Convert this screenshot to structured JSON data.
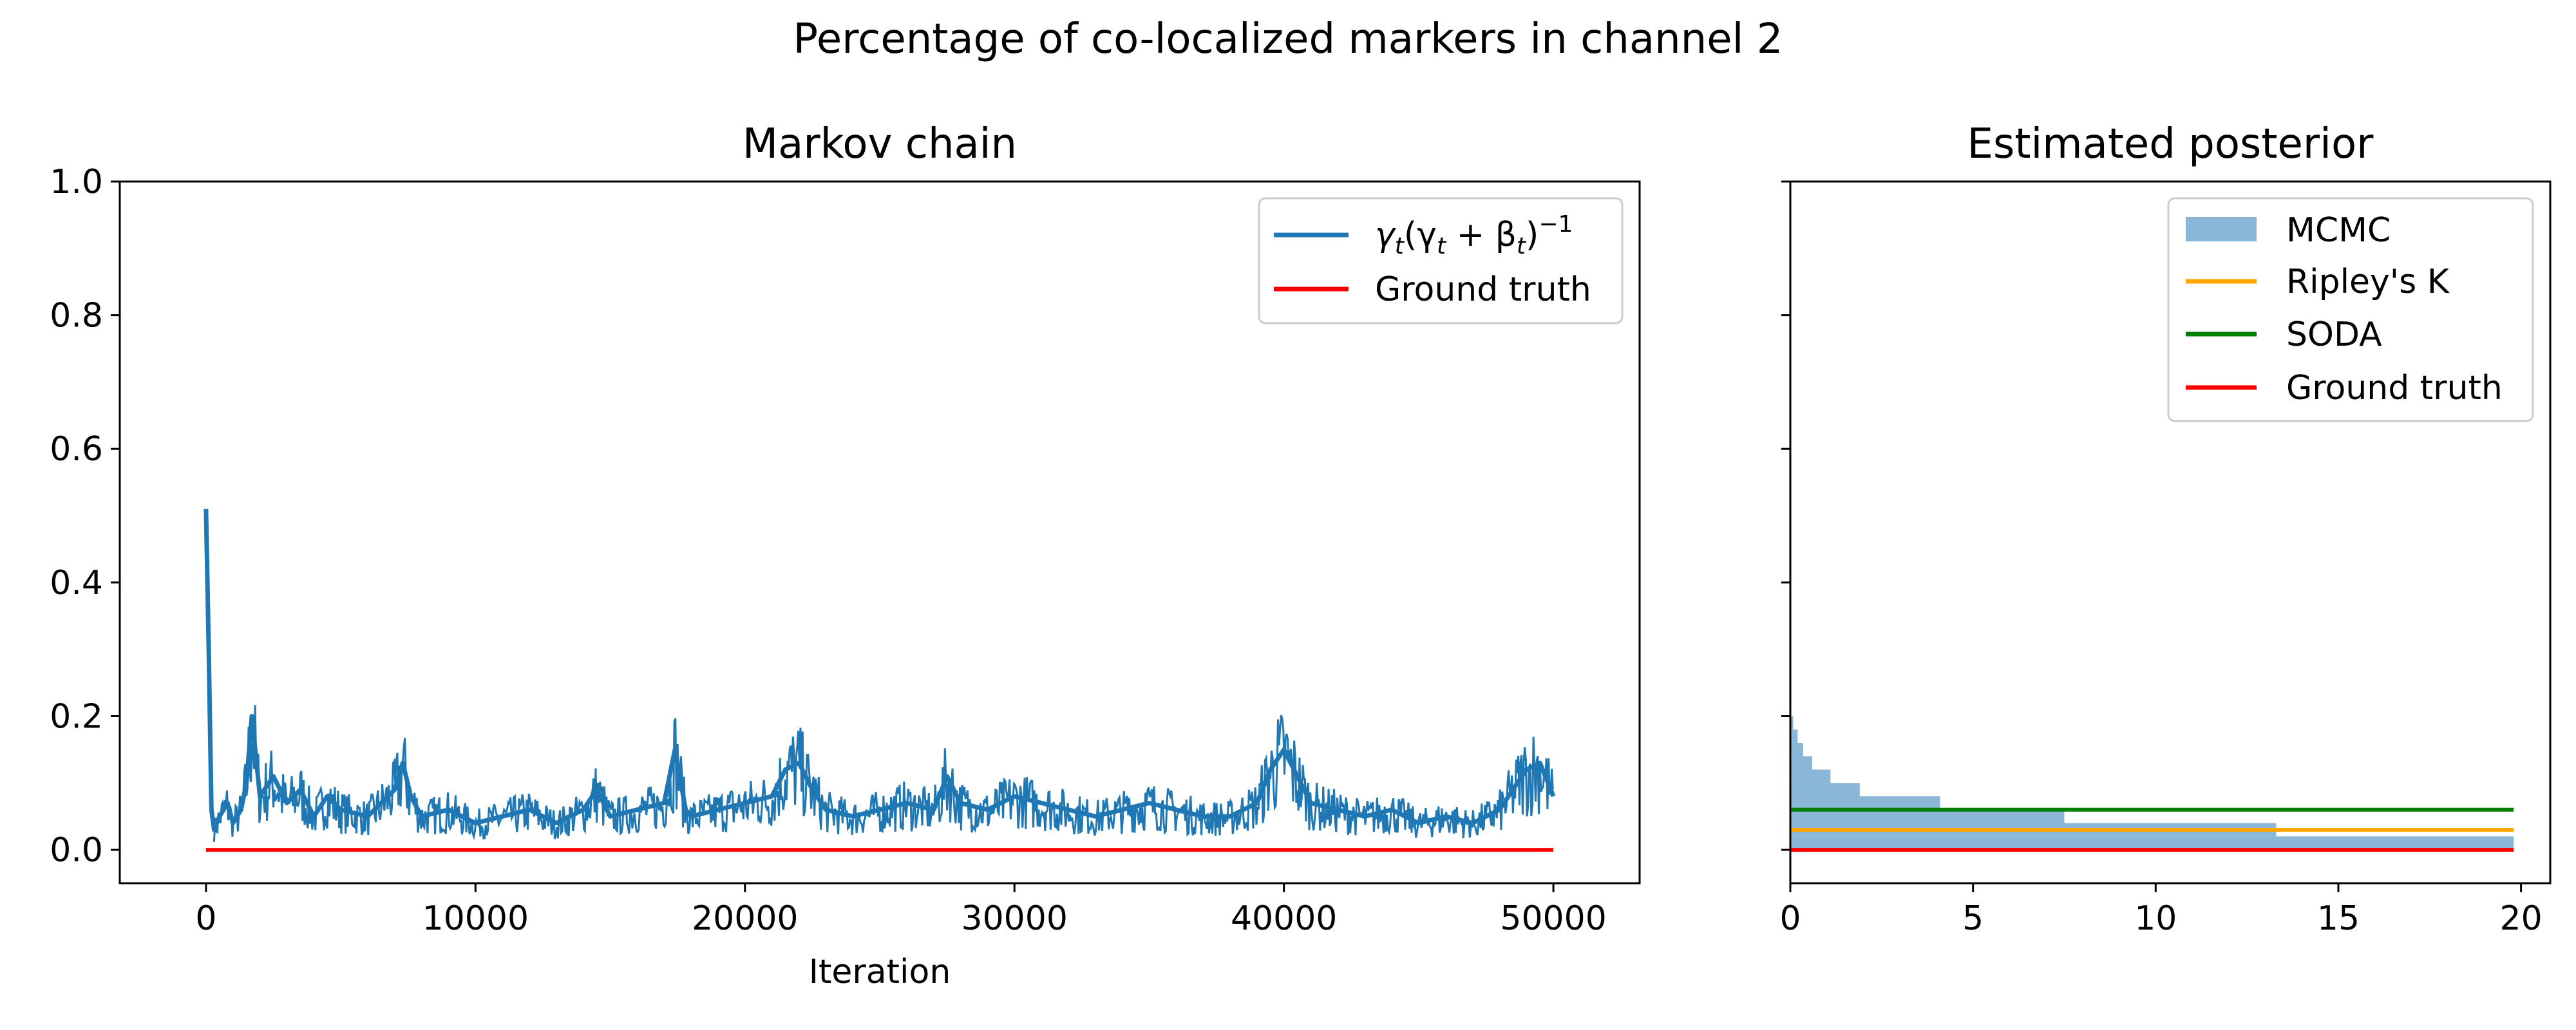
{
  "figure_title": "Percentage of co-localized markers in channel 2",
  "colors": {
    "chain": "#1f77b4",
    "mcmc": "#8ab6d8",
    "ripley": "#ffa500",
    "soda": "#008000",
    "ground_truth": "#ff0000"
  },
  "chart_data": [
    {
      "type": "line",
      "title": "Markov chain",
      "xlabel": "Iteration",
      "ylabel": "",
      "xlim": [
        -3200,
        53200
      ],
      "ylim": [
        -0.05,
        1.0
      ],
      "xticks": [
        0,
        10000,
        20000,
        30000,
        40000,
        50000
      ],
      "xtick_labels": [
        "0",
        "10000",
        "20000",
        "30000",
        "40000",
        "50000"
      ],
      "yticks": [
        0.0,
        0.2,
        0.4,
        0.6,
        0.8,
        1.0
      ],
      "ytick_labels": [
        "0.0",
        "0.2",
        "0.4",
        "0.6",
        "0.8",
        "1.0"
      ],
      "legend_position": "top-right",
      "series": [
        {
          "name": "γt(γt + βt)⁻¹",
          "legend_label": {
            "a": "γ",
            "a_sub": "t",
            "b": "(γ",
            "b_sub": "t",
            "c": " + β",
            "c_sub": "t",
            "d": ")",
            "d_sup": "−1"
          },
          "x": [
            0,
            100,
            200,
            300,
            500,
            800,
            1000,
            1300,
            1500,
            1700,
            2000,
            2500,
            3000,
            3500,
            4000,
            4500,
            5000,
            6000,
            7000,
            7300,
            7600,
            8000,
            9000,
            10000,
            11000,
            12000,
            13000,
            14000,
            14500,
            15000,
            16000,
            17000,
            17400,
            17800,
            18000,
            19000,
            20000,
            21000,
            21500,
            22000,
            22500,
            23000,
            24000,
            25000,
            26000,
            27000,
            27500,
            28000,
            29000,
            30000,
            31000,
            32000,
            33000,
            34000,
            35000,
            36000,
            37000,
            38000,
            39000,
            39500,
            40000,
            40500,
            41000,
            42000,
            43000,
            44000,
            45000,
            46000,
            47000,
            48000,
            48500,
            49000,
            49500,
            50000
          ],
          "values": [
            0.51,
            0.3,
            0.06,
            0.03,
            0.05,
            0.07,
            0.04,
            0.06,
            0.1,
            0.2,
            0.08,
            0.11,
            0.07,
            0.09,
            0.05,
            0.08,
            0.06,
            0.05,
            0.09,
            0.13,
            0.08,
            0.05,
            0.06,
            0.04,
            0.05,
            0.06,
            0.04,
            0.06,
            0.09,
            0.05,
            0.06,
            0.07,
            0.15,
            0.06,
            0.05,
            0.06,
            0.07,
            0.08,
            0.12,
            0.13,
            0.09,
            0.06,
            0.05,
            0.06,
            0.07,
            0.06,
            0.11,
            0.07,
            0.06,
            0.08,
            0.07,
            0.06,
            0.05,
            0.06,
            0.07,
            0.06,
            0.05,
            0.05,
            0.07,
            0.12,
            0.15,
            0.11,
            0.07,
            0.06,
            0.05,
            0.06,
            0.04,
            0.05,
            0.04,
            0.06,
            0.09,
            0.12,
            0.13,
            0.08
          ]
        },
        {
          "name": "Ground truth",
          "x": [
            0,
            50000
          ],
          "values": [
            0.0,
            0.0
          ]
        }
      ]
    },
    {
      "type": "bar",
      "orientation": "horizontal",
      "title": "Estimated posterior",
      "xlabel": "",
      "ylabel": "",
      "xlim": [
        0,
        20.8
      ],
      "ylim": [
        -0.05,
        1.0
      ],
      "xticks": [
        0,
        5,
        10,
        15,
        20
      ],
      "xtick_labels": [
        "0",
        "5",
        "10",
        "15",
        "20"
      ],
      "yticks": [
        0.0,
        0.2,
        0.4,
        0.6,
        0.8,
        1.0
      ],
      "ytick_labels": [
        "",
        "",
        "",
        "",
        "",
        ""
      ],
      "legend_position": "top-right",
      "series": [
        {
          "name": "MCMC",
          "bins": [
            {
              "y0": 0.0,
              "y1": 0.02,
              "value": 19.8
            },
            {
              "y0": 0.02,
              "y1": 0.04,
              "value": 13.3
            },
            {
              "y0": 0.04,
              "y1": 0.06,
              "value": 7.5
            },
            {
              "y0": 0.06,
              "y1": 0.08,
              "value": 4.1
            },
            {
              "y0": 0.08,
              "y1": 0.1,
              "value": 1.9
            },
            {
              "y0": 0.1,
              "y1": 0.12,
              "value": 1.1
            },
            {
              "y0": 0.12,
              "y1": 0.14,
              "value": 0.6
            },
            {
              "y0": 0.14,
              "y1": 0.16,
              "value": 0.35
            },
            {
              "y0": 0.16,
              "y1": 0.18,
              "value": 0.2
            },
            {
              "y0": 0.18,
              "y1": 0.2,
              "value": 0.08
            }
          ]
        },
        {
          "name": "Ripley's K",
          "y": 0.03,
          "x": [
            0,
            19.8
          ]
        },
        {
          "name": "SODA",
          "y": 0.06,
          "x": [
            0,
            19.8
          ]
        },
        {
          "name": "Ground truth",
          "y": 0.0,
          "x": [
            0,
            19.8
          ]
        }
      ]
    }
  ]
}
